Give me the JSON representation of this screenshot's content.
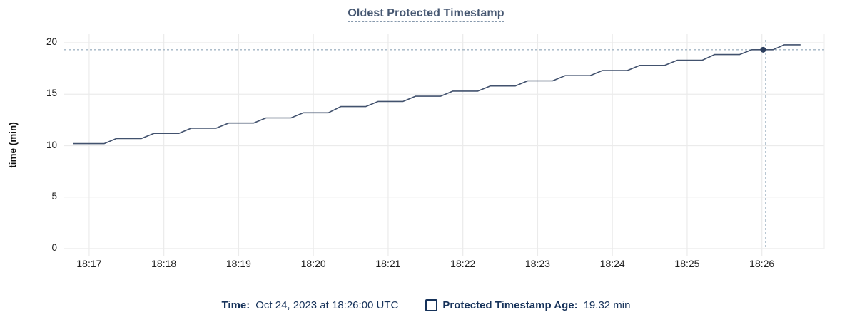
{
  "chart_data": {
    "type": "line",
    "title": "Oldest Protected Timestamp",
    "xlabel": "",
    "ylabel": "time (min)",
    "y_ticks": [
      0,
      5,
      10,
      15,
      20
    ],
    "ylim": [
      0,
      20
    ],
    "x_ticks": [
      {
        "label": "18:17",
        "t": 0
      },
      {
        "label": "18:18",
        "t": 60
      },
      {
        "label": "18:19",
        "t": 120
      },
      {
        "label": "18:20",
        "t": 180
      },
      {
        "label": "18:21",
        "t": 240
      },
      {
        "label": "18:22",
        "t": 300
      },
      {
        "label": "18:23",
        "t": 360
      },
      {
        "label": "18:24",
        "t": 420
      },
      {
        "label": "18:25",
        "t": 480
      },
      {
        "label": "18:26",
        "t": 540
      }
    ],
    "x_range_sec": [
      -20,
      590
    ],
    "grid": "on",
    "series": [
      {
        "name": "Protected Timestamp Age",
        "unit": "min",
        "points": [
          [
            -13,
            10.2
          ],
          [
            12,
            10.2
          ],
          [
            22,
            10.7
          ],
          [
            42,
            10.7
          ],
          [
            52,
            11.2
          ],
          [
            72,
            11.2
          ],
          [
            82,
            11.7
          ],
          [
            102,
            11.7
          ],
          [
            112,
            12.2
          ],
          [
            132,
            12.2
          ],
          [
            142,
            12.7
          ],
          [
            162,
            12.7
          ],
          [
            172,
            13.2
          ],
          [
            192,
            13.2
          ],
          [
            202,
            13.8
          ],
          [
            222,
            13.8
          ],
          [
            232,
            14.3
          ],
          [
            252,
            14.3
          ],
          [
            262,
            14.8
          ],
          [
            282,
            14.8
          ],
          [
            292,
            15.3
          ],
          [
            312,
            15.3
          ],
          [
            322,
            15.8
          ],
          [
            342,
            15.8
          ],
          [
            352,
            16.3
          ],
          [
            372,
            16.3
          ],
          [
            382,
            16.8
          ],
          [
            402,
            16.8
          ],
          [
            412,
            17.3
          ],
          [
            432,
            17.3
          ],
          [
            442,
            17.8
          ],
          [
            462,
            17.8
          ],
          [
            472,
            18.3
          ],
          [
            492,
            18.3
          ],
          [
            502,
            18.85
          ],
          [
            522,
            18.85
          ],
          [
            532,
            19.32
          ],
          [
            549,
            19.32
          ],
          [
            558,
            19.8
          ],
          [
            571,
            19.8
          ]
        ]
      }
    ],
    "crosshair": {
      "time_label": "18:26:00",
      "t": 543,
      "value": 19.32,
      "dot_t": 541
    },
    "colors": {
      "line": "#42526e",
      "grid": "#ebebeb",
      "edge_grid": "#f0f0f0",
      "crosshair": "#a3b5c4",
      "dot": "#2c3e5e",
      "title": "#475872",
      "legend_text": "#16325a",
      "tick_text": "#202020"
    }
  },
  "legend": {
    "time_label": "Time:",
    "time_value": "Oct 24, 2023 at 18:26:00 UTC",
    "age_label": "Protected Timestamp Age:",
    "age_value": "19.32 min"
  }
}
